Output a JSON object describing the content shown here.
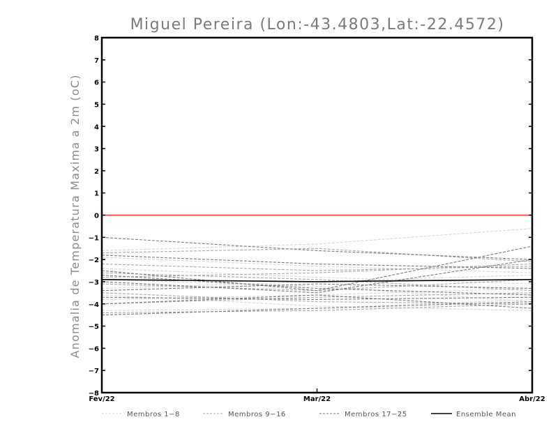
{
  "chart_data": {
    "type": "line",
    "title": "Miguel Pereira (Lon:-43.4803,Lat:-22.4572)",
    "xlabel": "",
    "ylabel": "Anomalia de Temperatura Maxima a 2m (oC)",
    "x": [
      "Fev/22",
      "Mar/22",
      "Abr/22"
    ],
    "ylim": [
      -8,
      8
    ],
    "yticks": [
      -8,
      -7,
      -6,
      -5,
      -4,
      -3,
      -2,
      -1,
      0,
      1,
      2,
      3,
      4,
      5,
      6,
      7,
      8
    ],
    "grid": false,
    "legend_position": "bottom",
    "zero_line": {
      "value": 0,
      "color": "#ff3333"
    },
    "legend": [
      {
        "label": "Membros 1-8",
        "color": "#d6d6d6",
        "style": "dashed"
      },
      {
        "label": "Membros 9-16",
        "color": "#a8a8a8",
        "style": "dashed"
      },
      {
        "label": "Membros 17-25",
        "color": "#7a7a7a",
        "style": "dashed"
      },
      {
        "label": "Ensemble Mean",
        "color": "#000000",
        "style": "solid"
      }
    ],
    "series": [
      {
        "group": 1,
        "values": [
          -1.6,
          -1.3,
          -0.6
        ]
      },
      {
        "group": 1,
        "values": [
          -2.4,
          -2.8,
          -3.1
        ]
      },
      {
        "group": 1,
        "values": [
          -3.6,
          -4.1,
          -4.3
        ]
      },
      {
        "group": 1,
        "values": [
          -2.9,
          -3.2,
          -3.9
        ]
      },
      {
        "group": 1,
        "values": [
          -3.3,
          -3.0,
          -2.7
        ]
      },
      {
        "group": 1,
        "values": [
          -4.3,
          -4.2,
          -3.8
        ]
      },
      {
        "group": 1,
        "values": [
          -1.9,
          -2.3,
          -2.6
        ]
      },
      {
        "group": 1,
        "values": [
          -3.8,
          -3.6,
          -3.3
        ]
      },
      {
        "group": 2,
        "values": [
          -1.7,
          -1.5,
          -2.1
        ]
      },
      {
        "group": 2,
        "values": [
          -2.6,
          -2.9,
          -3.4
        ]
      },
      {
        "group": 2,
        "values": [
          -4.0,
          -3.7,
          -3.5
        ]
      },
      {
        "group": 2,
        "values": [
          -3.1,
          -3.4,
          -2.9
        ]
      },
      {
        "group": 2,
        "values": [
          -2.2,
          -2.5,
          -2.3
        ]
      },
      {
        "group": 2,
        "values": [
          -3.5,
          -3.9,
          -4.0
        ]
      },
      {
        "group": 2,
        "values": [
          -2.8,
          -2.6,
          -2.2
        ]
      },
      {
        "group": 2,
        "values": [
          -4.4,
          -4.3,
          -4.0
        ]
      },
      {
        "group": 3,
        "values": [
          -1.0,
          -1.6,
          -2.0
        ]
      },
      {
        "group": 3,
        "values": [
          -1.8,
          -2.2,
          -2.4
        ]
      },
      {
        "group": 3,
        "values": [
          -2.5,
          -3.4,
          -1.4
        ]
      },
      {
        "group": 3,
        "values": [
          -2.7,
          -3.3,
          -3.6
        ]
      },
      {
        "group": 3,
        "values": [
          -3.0,
          -3.5,
          -2.0
        ]
      },
      {
        "group": 3,
        "values": [
          -3.4,
          -3.1,
          -3.3
        ]
      },
      {
        "group": 3,
        "values": [
          -3.7,
          -3.8,
          -3.7
        ]
      },
      {
        "group": 3,
        "values": [
          -4.0,
          -3.6,
          -4.2
        ]
      },
      {
        "group": 3,
        "values": [
          -4.5,
          -4.2,
          -3.9
        ]
      },
      {
        "group": 4,
        "values": [
          -2.9,
          -3.0,
          -2.9
        ]
      }
    ]
  }
}
